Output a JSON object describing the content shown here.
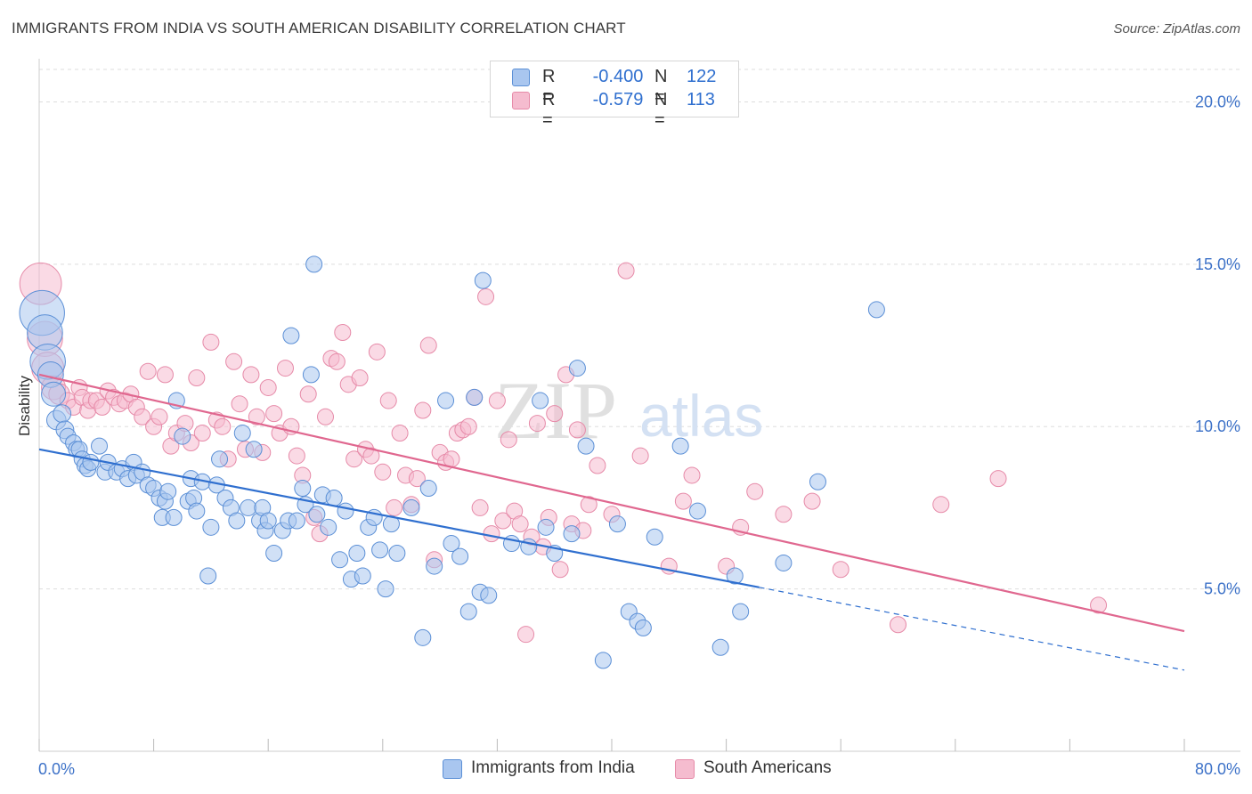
{
  "title": "IMMIGRANTS FROM INDIA VS SOUTH AMERICAN DISABILITY CORRELATION CHART",
  "source": "Source: ZipAtlas.com",
  "watermark": {
    "zip": "ZIP",
    "atlas": "atlas"
  },
  "legend": {
    "r_label": "R =",
    "n_label": "N =",
    "india": {
      "r": "-0.400",
      "n": "122"
    },
    "south": {
      "r": "-0.579",
      "n": "113"
    }
  },
  "colors": {
    "india_fill": "#a9c6ef",
    "india_stroke": "#5b8fd6",
    "india_line": "#2f6fcf",
    "south_fill": "#f5bccf",
    "south_stroke": "#e68aa8",
    "south_line": "#e0678f",
    "axis_label": "#3d72c8",
    "grid": "#dddddd"
  },
  "chart_data": {
    "type": "scatter",
    "title": "IMMIGRANTS FROM INDIA VS SOUTH AMERICAN DISABILITY CORRELATION CHART",
    "xlabel": "",
    "ylabel": "Disability",
    "xlim": [
      0,
      80
    ],
    "ylim": [
      0,
      21
    ],
    "x_tick_labels": [
      "0.0%",
      "80.0%"
    ],
    "y_ticks": [
      5,
      10,
      15,
      20
    ],
    "y_tick_labels": [
      "5.0%",
      "10.0%",
      "15.0%",
      "20.0%"
    ],
    "grid": true,
    "legend_position": "top-center",
    "series": [
      {
        "name": "Immigrants from India",
        "r": -0.4,
        "n": 122,
        "trend": {
          "x0": 0,
          "y0": 9.3,
          "x1": 50.3,
          "y1": 5.05,
          "dashed_to_x": 80,
          "dashed_to_y": 2.5
        },
        "points": [
          [
            0.2,
            13.5,
            2.8
          ],
          [
            0.4,
            12.9,
            2.2
          ],
          [
            0.6,
            12.0,
            2.2
          ],
          [
            0.8,
            11.6,
            1.6
          ],
          [
            1.0,
            11.0,
            1.5
          ],
          [
            1.2,
            10.2,
            1.2
          ],
          [
            1.6,
            10.4,
            1.1
          ],
          [
            1.8,
            9.9,
            1.1
          ],
          [
            2.0,
            9.7,
            1
          ],
          [
            2.4,
            9.5,
            1
          ],
          [
            2.6,
            9.3,
            1
          ],
          [
            2.8,
            9.3,
            1
          ],
          [
            3.0,
            9.0,
            1
          ],
          [
            3.2,
            8.8,
            1
          ],
          [
            3.4,
            8.7,
            1
          ],
          [
            3.6,
            8.9,
            1
          ],
          [
            4.2,
            9.4,
            1
          ],
          [
            4.6,
            8.6,
            1
          ],
          [
            4.8,
            8.9,
            1
          ],
          [
            5.4,
            8.6,
            1
          ],
          [
            5.8,
            8.7,
            1
          ],
          [
            6.2,
            8.4,
            1
          ],
          [
            6.6,
            8.9,
            1
          ],
          [
            6.8,
            8.5,
            1
          ],
          [
            7.2,
            8.6,
            1
          ],
          [
            7.6,
            8.2,
            1
          ],
          [
            8.0,
            8.1,
            1
          ],
          [
            8.4,
            7.8,
            1
          ],
          [
            8.6,
            7.2,
            1
          ],
          [
            8.8,
            7.7,
            1
          ],
          [
            9.0,
            8.0,
            1
          ],
          [
            9.4,
            7.2,
            1
          ],
          [
            9.6,
            10.8,
            1
          ],
          [
            10.0,
            9.7,
            1
          ],
          [
            10.4,
            7.7,
            1
          ],
          [
            10.6,
            8.4,
            1
          ],
          [
            10.8,
            7.8,
            1
          ],
          [
            11.0,
            7.4,
            1
          ],
          [
            11.4,
            8.3,
            1
          ],
          [
            11.8,
            5.4,
            1
          ],
          [
            12.0,
            6.9,
            1
          ],
          [
            12.4,
            8.2,
            1
          ],
          [
            12.6,
            9.0,
            1
          ],
          [
            13.0,
            7.8,
            1
          ],
          [
            13.4,
            7.5,
            1
          ],
          [
            13.8,
            7.1,
            1
          ],
          [
            14.2,
            9.8,
            1
          ],
          [
            14.6,
            7.5,
            1
          ],
          [
            15.0,
            9.3,
            1
          ],
          [
            15.4,
            7.1,
            1
          ],
          [
            15.6,
            7.5,
            1
          ],
          [
            15.8,
            6.8,
            1
          ],
          [
            16.0,
            7.1,
            1
          ],
          [
            16.4,
            6.1,
            1
          ],
          [
            17.0,
            6.8,
            1
          ],
          [
            17.4,
            7.1,
            1
          ],
          [
            17.6,
            12.8,
            1
          ],
          [
            18.0,
            7.1,
            1
          ],
          [
            18.4,
            8.1,
            1
          ],
          [
            18.6,
            7.6,
            1
          ],
          [
            19.0,
            11.6,
            1
          ],
          [
            19.4,
            7.3,
            1
          ],
          [
            19.8,
            7.9,
            1
          ],
          [
            20.2,
            6.9,
            1
          ],
          [
            20.6,
            7.8,
            1
          ],
          [
            21.0,
            5.9,
            1
          ],
          [
            21.4,
            7.4,
            1
          ],
          [
            21.8,
            5.3,
            1
          ],
          [
            22.2,
            6.1,
            1
          ],
          [
            22.6,
            5.4,
            1
          ],
          [
            23.0,
            6.9,
            1
          ],
          [
            23.4,
            7.2,
            1
          ],
          [
            23.8,
            6.2,
            1
          ],
          [
            24.2,
            5.0,
            1
          ],
          [
            24.6,
            7.0,
            1
          ],
          [
            25.0,
            6.1,
            1
          ],
          [
            26.0,
            7.5,
            1
          ],
          [
            26.8,
            3.5,
            1
          ],
          [
            27.2,
            8.1,
            1
          ],
          [
            27.6,
            5.7,
            1
          ],
          [
            28.4,
            10.8,
            1
          ],
          [
            28.8,
            6.4,
            1
          ],
          [
            29.4,
            6.0,
            1
          ],
          [
            30.0,
            4.3,
            1
          ],
          [
            30.4,
            10.9,
            1
          ],
          [
            30.8,
            4.9,
            1
          ],
          [
            31.0,
            14.5,
            1
          ],
          [
            31.4,
            4.8,
            1
          ],
          [
            19.2,
            15.0,
            1
          ],
          [
            33.0,
            6.4,
            1
          ],
          [
            34.2,
            6.3,
            1
          ],
          [
            35.0,
            10.8,
            1
          ],
          [
            35.4,
            6.9,
            1
          ],
          [
            36.0,
            6.1,
            1
          ],
          [
            37.2,
            6.7,
            1
          ],
          [
            37.6,
            11.8,
            1
          ],
          [
            38.2,
            9.4,
            1
          ],
          [
            39.4,
            2.8,
            1
          ],
          [
            40.4,
            7.0,
            1
          ],
          [
            41.2,
            4.3,
            1
          ],
          [
            41.8,
            4.0,
            1
          ],
          [
            42.2,
            3.8,
            1
          ],
          [
            43.0,
            6.6,
            1
          ],
          [
            44.8,
            9.4,
            1
          ],
          [
            46.0,
            7.4,
            1
          ],
          [
            47.6,
            3.2,
            1
          ],
          [
            48.6,
            5.4,
            1
          ],
          [
            49.0,
            4.3,
            1
          ],
          [
            52.0,
            5.8,
            1
          ],
          [
            54.4,
            8.3,
            1
          ],
          [
            58.5,
            13.6,
            1
          ]
        ]
      },
      {
        "name": "South Americans",
        "r": -0.579,
        "n": 113,
        "trend": {
          "x0": 0,
          "y0": 11.6,
          "x1": 80,
          "y1": 3.7
        },
        "points": [
          [
            0.1,
            14.4,
            2.6
          ],
          [
            0.4,
            12.7,
            2.2
          ],
          [
            0.6,
            11.8,
            2.0
          ],
          [
            1.0,
            11.2,
            1.5
          ],
          [
            1.4,
            11.0,
            1.3
          ],
          [
            2.0,
            10.8,
            1
          ],
          [
            2.4,
            10.6,
            1
          ],
          [
            2.8,
            11.2,
            1
          ],
          [
            3.0,
            10.9,
            1
          ],
          [
            3.4,
            10.5,
            1
          ],
          [
            3.6,
            10.8,
            1
          ],
          [
            4.0,
            10.8,
            1
          ],
          [
            4.4,
            10.6,
            1
          ],
          [
            4.8,
            11.1,
            1
          ],
          [
            5.2,
            10.9,
            1
          ],
          [
            5.6,
            10.7,
            1
          ],
          [
            6.0,
            10.8,
            1
          ],
          [
            6.4,
            11.0,
            1
          ],
          [
            6.8,
            10.6,
            1
          ],
          [
            7.2,
            10.3,
            1
          ],
          [
            7.6,
            11.7,
            1
          ],
          [
            8.0,
            10.0,
            1
          ],
          [
            8.4,
            10.3,
            1
          ],
          [
            8.8,
            11.6,
            1
          ],
          [
            9.2,
            9.4,
            1
          ],
          [
            9.6,
            9.8,
            1
          ],
          [
            10.2,
            10.1,
            1
          ],
          [
            10.6,
            9.5,
            1
          ],
          [
            11.0,
            11.5,
            1
          ],
          [
            11.4,
            9.8,
            1
          ],
          [
            12.0,
            12.6,
            1
          ],
          [
            12.4,
            10.2,
            1
          ],
          [
            12.8,
            10.0,
            1
          ],
          [
            13.2,
            9.0,
            1
          ],
          [
            13.6,
            12.0,
            1
          ],
          [
            14.0,
            10.7,
            1
          ],
          [
            14.4,
            9.3,
            1
          ],
          [
            14.8,
            11.6,
            1
          ],
          [
            15.2,
            10.3,
            1
          ],
          [
            15.6,
            9.2,
            1
          ],
          [
            16.0,
            11.2,
            1
          ],
          [
            16.4,
            10.4,
            1
          ],
          [
            16.8,
            9.8,
            1
          ],
          [
            17.2,
            11.8,
            1
          ],
          [
            17.6,
            10.0,
            1
          ],
          [
            18.0,
            9.1,
            1
          ],
          [
            18.4,
            8.5,
            1
          ],
          [
            18.8,
            11.0,
            1
          ],
          [
            19.2,
            7.2,
            1
          ],
          [
            19.6,
            6.7,
            1
          ],
          [
            20.0,
            10.3,
            1
          ],
          [
            20.4,
            12.1,
            1
          ],
          [
            20.8,
            12.0,
            1
          ],
          [
            21.2,
            12.9,
            1
          ],
          [
            21.6,
            11.3,
            1
          ],
          [
            22.0,
            9.0,
            1
          ],
          [
            22.4,
            11.5,
            1
          ],
          [
            22.8,
            9.3,
            1
          ],
          [
            23.2,
            9.1,
            1
          ],
          [
            23.6,
            12.3,
            1
          ],
          [
            24.0,
            8.6,
            1
          ],
          [
            24.4,
            10.8,
            1
          ],
          [
            24.8,
            7.5,
            1
          ],
          [
            25.2,
            9.8,
            1
          ],
          [
            25.6,
            8.5,
            1
          ],
          [
            26.0,
            7.6,
            1
          ],
          [
            26.4,
            8.4,
            1
          ],
          [
            26.8,
            10.5,
            1
          ],
          [
            27.2,
            12.5,
            1
          ],
          [
            27.6,
            5.9,
            1
          ],
          [
            28.0,
            9.2,
            1
          ],
          [
            28.4,
            8.9,
            1
          ],
          [
            28.8,
            9.0,
            1
          ],
          [
            29.2,
            9.8,
            1
          ],
          [
            29.6,
            9.9,
            1
          ],
          [
            30.0,
            10.0,
            1
          ],
          [
            30.4,
            10.9,
            1
          ],
          [
            30.8,
            7.5,
            1
          ],
          [
            31.2,
            14.0,
            1
          ],
          [
            31.6,
            6.7,
            1
          ],
          [
            32.0,
            10.8,
            1
          ],
          [
            32.4,
            7.1,
            1
          ],
          [
            32.8,
            9.6,
            1
          ],
          [
            33.2,
            7.4,
            1
          ],
          [
            33.6,
            7.0,
            1
          ],
          [
            34.0,
            3.6,
            1
          ],
          [
            34.4,
            6.6,
            1
          ],
          [
            34.8,
            10.1,
            1
          ],
          [
            35.2,
            6.3,
            1
          ],
          [
            35.6,
            7.2,
            1
          ],
          [
            36.0,
            10.4,
            1
          ],
          [
            36.4,
            5.6,
            1
          ],
          [
            36.8,
            11.6,
            1
          ],
          [
            37.2,
            7.0,
            1
          ],
          [
            37.6,
            9.9,
            1
          ],
          [
            38.0,
            6.8,
            1
          ],
          [
            38.4,
            7.6,
            1
          ],
          [
            39.0,
            8.8,
            1
          ],
          [
            40.0,
            7.3,
            1
          ],
          [
            41.0,
            14.8,
            1
          ],
          [
            42.0,
            9.1,
            1
          ],
          [
            44.0,
            5.7,
            1
          ],
          [
            45.0,
            7.7,
            1
          ],
          [
            45.6,
            8.5,
            1
          ],
          [
            48.0,
            5.7,
            1
          ],
          [
            49.0,
            6.9,
            1
          ],
          [
            50.0,
            8.0,
            1
          ],
          [
            52.0,
            7.3,
            1
          ],
          [
            54.0,
            7.7,
            1
          ],
          [
            56.0,
            5.6,
            1
          ],
          [
            60.0,
            3.9,
            1
          ],
          [
            63.0,
            7.6,
            1
          ],
          [
            67.0,
            8.4,
            1
          ],
          [
            74.0,
            4.5,
            1
          ]
        ]
      }
    ]
  },
  "bottom_legend": {
    "india": "Immigrants from India",
    "south": "South Americans"
  }
}
